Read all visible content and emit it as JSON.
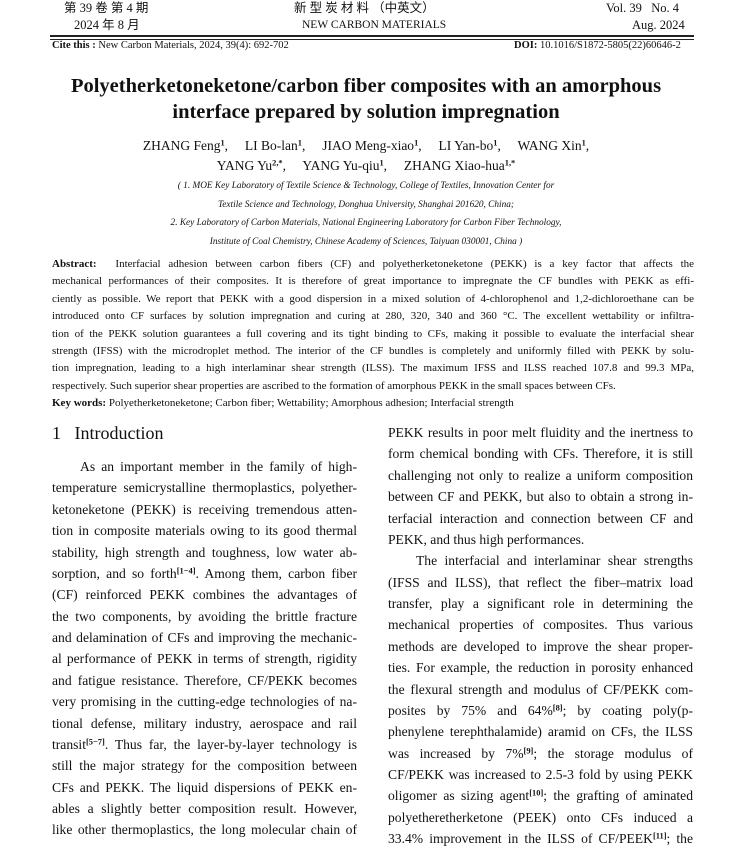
{
  "header": {
    "volume_cn": "第 39 卷  第 4 期",
    "date_cn": "2024 年 8 月",
    "journal_cn": "新  型  炭  材  料  （中英文）",
    "journal_en": "NEW CARBON MATERIALS",
    "volume_en": "Vol. 39   No. 4",
    "date_en": "Aug. 2024",
    "cite_label": "Cite this :",
    "cite_text": " New Carbon Materials, 2024, 39(4): 692-702",
    "doi_label": "DOI:",
    "doi_text": " 10.1016/S1872-5805(22)60646-2"
  },
  "article": {
    "title_lines": [
      "Polyetherketoneketone/carbon fiber composites with an amorphous",
      "interface prepared by solution impregnation"
    ],
    "authors": [
      [
        [
          "ZHANG Feng",
          "1"
        ],
        [
          "LI Bo-lan",
          "1"
        ],
        [
          "JIAO Meng-xiao",
          "1"
        ],
        [
          "LI Yan-bo",
          "1"
        ],
        [
          "WANG Xin",
          "1"
        ]
      ],
      [
        [
          "YANG Yu",
          "2,*"
        ],
        [
          "YANG Yu-qiu",
          "1"
        ],
        [
          "ZHANG Xiao-hua",
          "1,*"
        ]
      ]
    ],
    "affiliations": [
      "( 1. MOE Key Laboratory of Textile Science & Technology, College of Textiles, Innovation Center for",
      "Textile Science and Technology, Donghua University, Shanghai 201620, China;",
      "2. Key Laboratory of Carbon Materials, National Engineering Laboratory for Carbon Fiber Technology,",
      "Institute of Coal Chemistry, Chinese Academy of Sciences, Taiyuan 030001, China )"
    ],
    "abstract_label": "Abstract:",
    "abstract_lines": [
      "Interfacial adhesion between carbon fibers (CF) and polyetherketoneketone (PEKK) is a key factor that affects the",
      "mechanical performances of their composites. It is therefore of great importance to impregnate the CF bundles with PEKK as effi-",
      "ciently as possible. We report that PEKK with a good dispersion in a mixed solution of 4-chlorophenol and 1,2-dichloroethane can be",
      "introduced onto CF surfaces by solution impregnation and curing at 280, 320, 340 and 360 °C. The excellent wettability or infiltra-",
      "tion of the PEKK solution guarantees a full covering and its tight binding to CFs, making it possible to evaluate the interfacial shear",
      "strength (IFSS) with the microdroplet method. The interior of the CF bundles is completely and uniformly filled with PEKK by solu-",
      "tion impregnation, leading to a high interlaminar shear strength (ILSS). The maximum IFSS and ILSS reached 107.8 and 99.3 MPa,",
      "respectively. Such superior shear properties are ascribed to the formation of amorphous PEKK in the small spaces between CFs."
    ],
    "keywords_label": "Key words:",
    "keywords": "Polyetherketoneketone; Carbon fiber; Wettability; Amorphous adhesion; Interfacial strength",
    "section_heading": "1   Introduction",
    "left_column": [
      {
        "segs": [
          "As an important member in the family of high-"
        ],
        "indent": true
      },
      {
        "segs": [
          "temperature semicrystalline thermoplastics, polyether-"
        ]
      },
      {
        "segs": [
          "ketoneketone (PEKK) is receiving tremendous atten-"
        ]
      },
      {
        "segs": [
          "tion in composite materials owing to its good thermal"
        ]
      },
      {
        "segs": [
          "stability, high strength and toughness, low water ab-"
        ]
      },
      {
        "segs": [
          "sorption, and so forth",
          {
            "sup": "[1−4]"
          },
          ". Among them, carbon fiber"
        ]
      },
      {
        "segs": [
          "(CF) reinforced PEKK combines the advantages of"
        ]
      },
      {
        "segs": [
          "the two components, by avoiding the brittle fracture"
        ]
      },
      {
        "segs": [
          "and delamination of CFs and improving the mechanic-"
        ]
      },
      {
        "segs": [
          "al performance of PEKK in terms of strength, rigidity"
        ]
      },
      {
        "segs": [
          "and fatigue resistance. Therefore, CF/PEKK becomes"
        ]
      },
      {
        "segs": [
          "very promising in the cutting-edge technologies of na-"
        ]
      },
      {
        "segs": [
          "tional defense, military industry, aerospace and rail"
        ]
      },
      {
        "segs": [
          "transit",
          {
            "sup": "[5−7]"
          },
          ". Thus far, the layer-by-layer technology is"
        ]
      },
      {
        "segs": [
          "still the major strategy for the composition between"
        ]
      },
      {
        "segs": [
          "CFs and PEKK. The liquid dispersions of PEKK en-"
        ]
      },
      {
        "segs": [
          "ables a slightly better composition result. However,"
        ]
      },
      {
        "segs": [
          "like other thermoplastics, the long molecular chain of"
        ]
      }
    ],
    "right_column": [
      {
        "segs": [
          "PEKK results in poor melt fluidity and the inertness to"
        ]
      },
      {
        "segs": [
          "form chemical bonding with CFs. Therefore, it is still"
        ]
      },
      {
        "segs": [
          "challenging not only to realize a uniform composition"
        ]
      },
      {
        "segs": [
          "between CF and PEKK, but also to obtain a strong in-"
        ]
      },
      {
        "segs": [
          "terfacial interaction and connection between CF and"
        ]
      },
      {
        "segs": [
          "PEKK, and thus high performances."
        ],
        "end": true
      },
      {
        "segs": [
          "The interfacial and interlaminar shear strengths"
        ],
        "indent": true
      },
      {
        "segs": [
          "(IFSS and ILSS), that reflect the fiber–matrix load"
        ]
      },
      {
        "segs": [
          "transfer, play a significant role in determining the"
        ]
      },
      {
        "segs": [
          "mechanical properties of composites. Thus various"
        ]
      },
      {
        "segs": [
          "methods are developed to improve the shear proper-"
        ]
      },
      {
        "segs": [
          "ties. For example, the reduction in porosity enhanced"
        ]
      },
      {
        "segs": [
          "the flexural strength and modulus of CF/PEKK com-"
        ]
      },
      {
        "segs": [
          "posites by 75% and 64%",
          {
            "sup": "[8]"
          },
          "; by coating poly(p-"
        ]
      },
      {
        "segs": [
          "phenylene terephthalamide) aramid on CFs, the ILSS"
        ]
      },
      {
        "segs": [
          "was increased by 7%",
          {
            "sup": "[9]"
          },
          "; the storage modulus of"
        ]
      },
      {
        "segs": [
          "CF/PEKK was increased to 2.5-3 fold by using PEKK"
        ]
      },
      {
        "segs": [
          "oligomer as sizing agent",
          {
            "sup": "[10]"
          },
          "; the grafting of aminated"
        ]
      },
      {
        "segs": [
          "polyetheretherketone (PEEK) onto CFs induced a"
        ]
      },
      {
        "segs": [
          "33.4% improvement in the ILSS of CF/PEEK",
          {
            "sup": "[11]"
          },
          "; the"
        ]
      }
    ]
  }
}
